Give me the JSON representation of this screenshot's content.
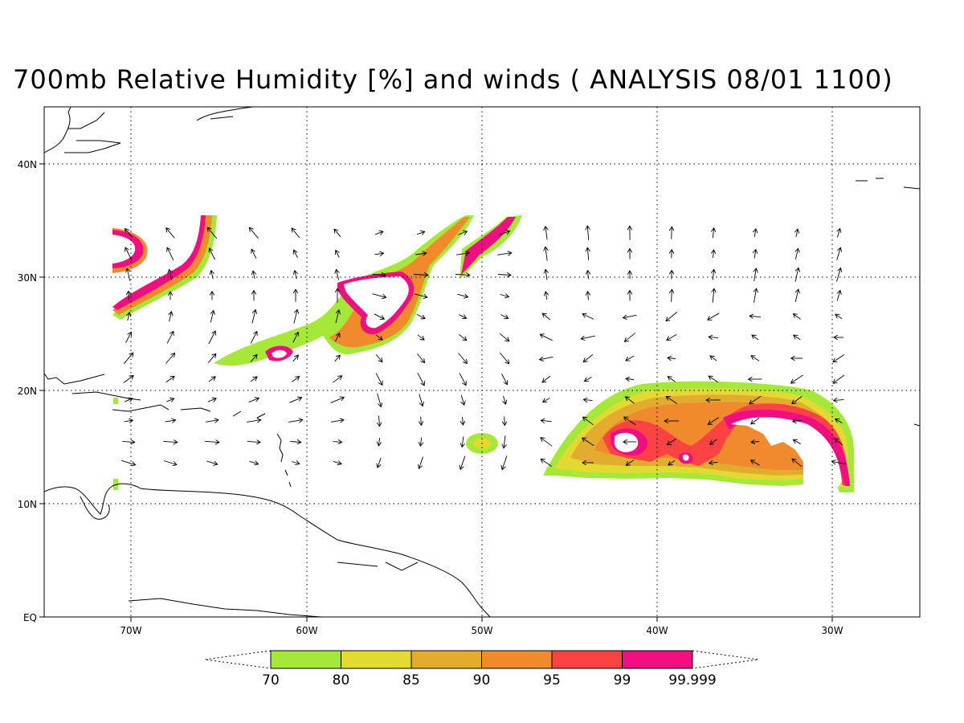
{
  "title": "700mb Relative Humidity [%] and winds ( ANALYSIS 08/01 1100)",
  "lat_labels": [
    "40N",
    "30N",
    "20N",
    "10N",
    "EQ"
  ],
  "lon_labels": [
    "70W",
    "60W",
    "50W",
    "40W",
    "30W"
  ],
  "colorbar": {
    "labels": [
      "70",
      "80",
      "85",
      "90",
      "95",
      "99",
      "99.999"
    ],
    "colors": [
      "#a6e83a",
      "#e2da32",
      "#e4ac2e",
      "#f18a2d",
      "#fb4343",
      "#ef0f80"
    ]
  },
  "map_extent": {
    "lon": [
      -75,
      -25
    ],
    "lat": [
      0,
      45
    ]
  },
  "overlay": "wind-vectors"
}
